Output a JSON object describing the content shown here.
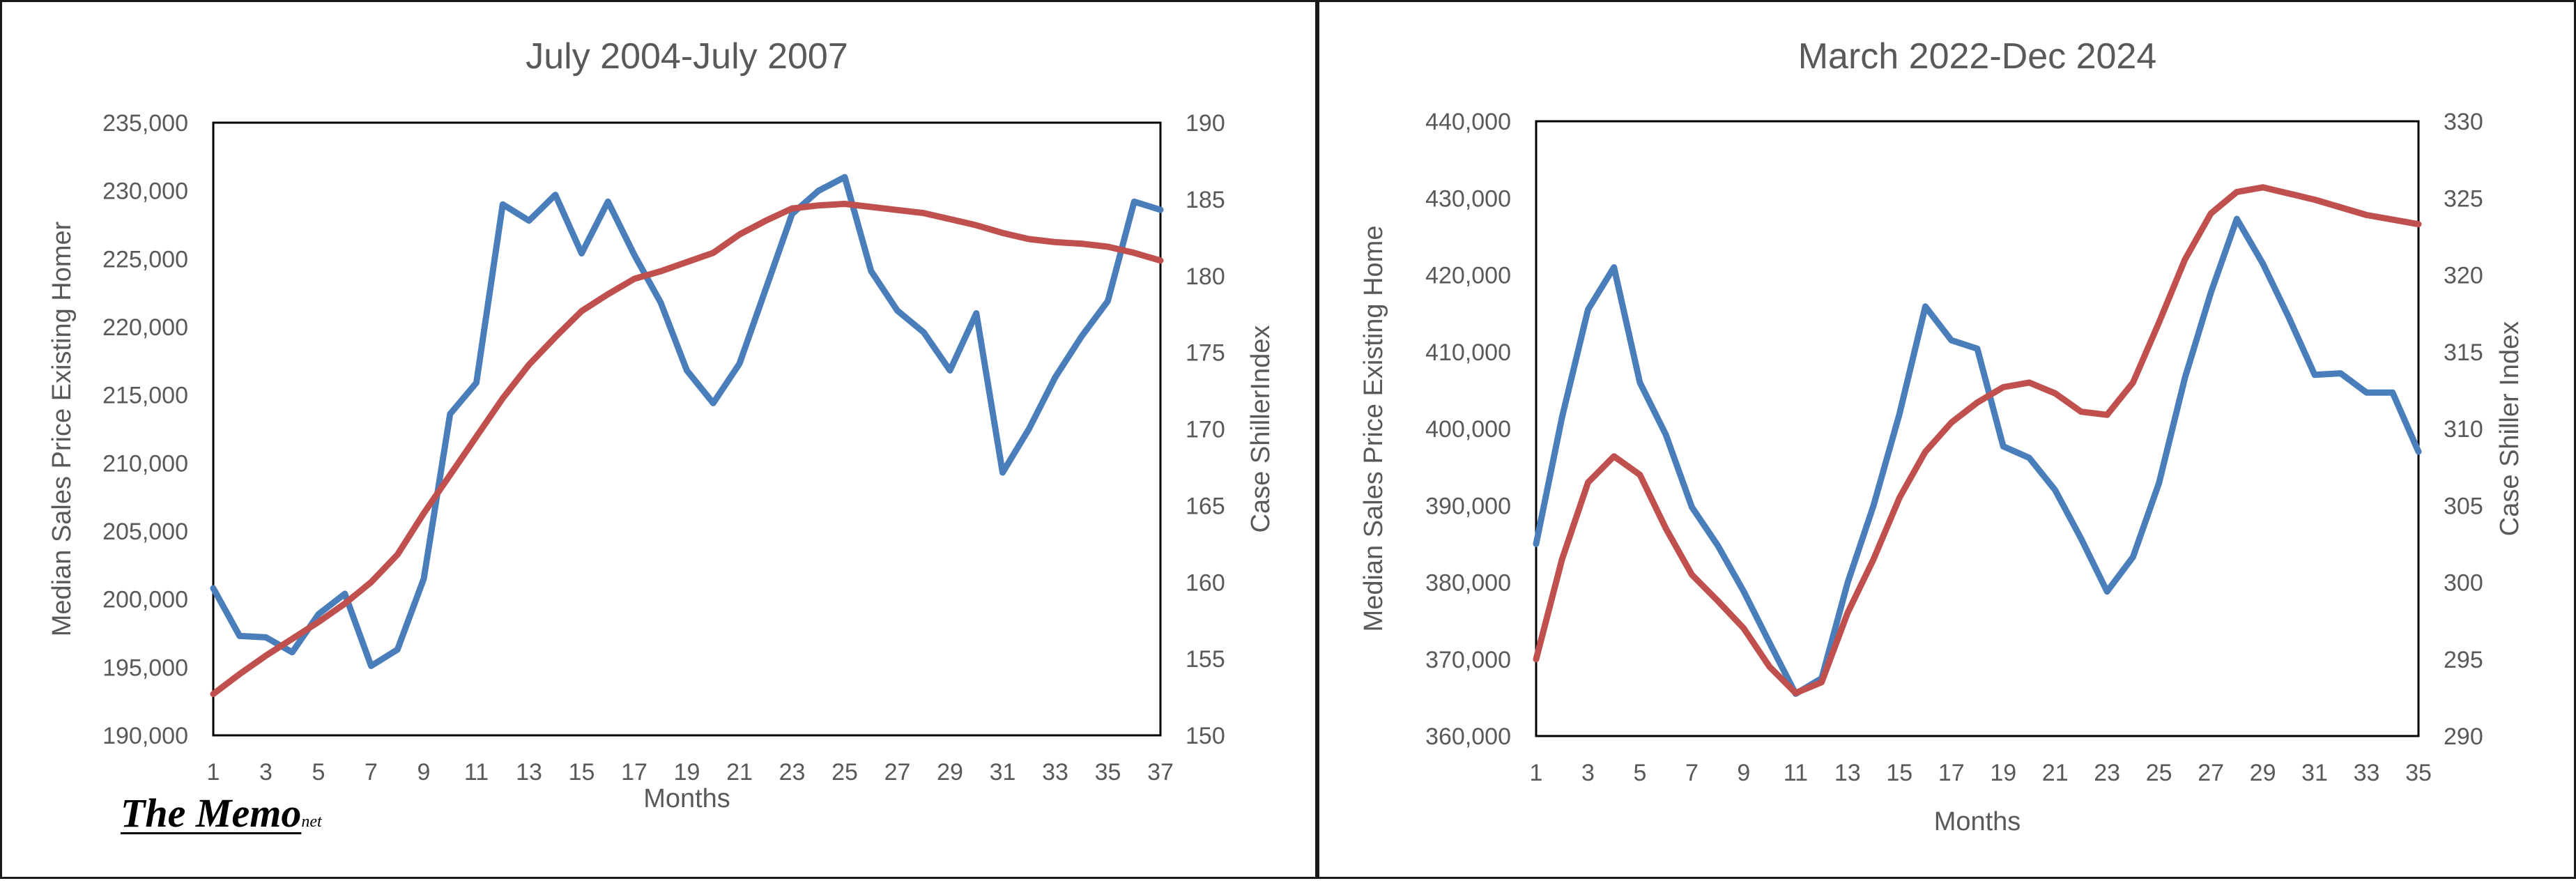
{
  "colors": {
    "series_price": "#4a7ebb",
    "series_case_shiller": "#c0504d",
    "text": "#595959",
    "frame": "#000000"
  },
  "logo": {
    "main": "The Memo",
    "sub": "net"
  },
  "chart_data": [
    {
      "type": "line",
      "title": "July 2004-July 2007",
      "xlabel": "Months",
      "ylabel_left": "Median Sales Price Existing Homer",
      "ylabel_right": "Case ShillerIndex",
      "x": [
        1,
        2,
        3,
        4,
        5,
        6,
        7,
        8,
        9,
        10,
        11,
        12,
        13,
        14,
        15,
        16,
        17,
        18,
        19,
        20,
        21,
        22,
        23,
        24,
        25,
        26,
        27,
        28,
        29,
        30,
        31,
        32,
        33,
        34,
        35,
        36,
        37
      ],
      "x_ticks": [
        "1",
        "3",
        "5",
        "7",
        "9",
        "11",
        "13",
        "15",
        "17",
        "19",
        "21",
        "23",
        "25",
        "27",
        "29",
        "31",
        "33",
        "35",
        "37"
      ],
      "ylim_left": [
        190000,
        235000
      ],
      "ylim_right": [
        150,
        190
      ],
      "y_ticks_left": [
        "190,000",
        "195,000",
        "200,000",
        "205,000",
        "210,000",
        "215,000",
        "220,000",
        "225,000",
        "230,000",
        "235,000"
      ],
      "y_ticks_right": [
        "150",
        "155",
        "160",
        "165",
        "170",
        "175",
        "180",
        "185",
        "190"
      ],
      "series": [
        {
          "name": "Median Sales Price Existing Home",
          "axis": "left",
          "color": "#4a7ebb",
          "values": [
            200800,
            197300,
            197200,
            196100,
            198900,
            200400,
            195100,
            196300,
            201500,
            213600,
            215900,
            229000,
            227800,
            229700,
            225400,
            229200,
            225300,
            221800,
            216800,
            214400,
            217300,
            222800,
            228300,
            230000,
            231000,
            224100,
            221200,
            219600,
            216800,
            221000,
            209300,
            212500,
            216300,
            219300,
            221900,
            229200,
            228600
          ]
        },
        {
          "name": "Case Shiller Index",
          "axis": "right",
          "color": "#c0504d",
          "values": [
            152.7,
            154.0,
            155.2,
            156.3,
            157.4,
            158.6,
            160.0,
            161.8,
            164.5,
            167.0,
            169.5,
            172.0,
            174.2,
            176.0,
            177.7,
            178.8,
            179.8,
            180.3,
            180.9,
            181.5,
            182.7,
            183.6,
            184.4,
            184.6,
            184.7,
            184.5,
            184.3,
            184.1,
            183.7,
            183.3,
            182.8,
            182.4,
            182.2,
            182.1,
            181.9,
            181.5,
            181.0
          ]
        }
      ]
    },
    {
      "type": "line",
      "title": "March 2022-Dec 2024",
      "xlabel": "Months",
      "ylabel_left": "Median Sales Price Existing Home",
      "ylabel_right": "Case Shiller Index",
      "x": [
        1,
        2,
        3,
        4,
        5,
        6,
        7,
        8,
        9,
        10,
        11,
        12,
        13,
        14,
        15,
        16,
        17,
        18,
        19,
        20,
        21,
        22,
        23,
        24,
        25,
        26,
        27,
        28,
        29,
        30,
        31,
        32,
        33,
        34,
        35
      ],
      "x_ticks": [
        "1",
        "3",
        "5",
        "7",
        "9",
        "11",
        "13",
        "15",
        "17",
        "19",
        "21",
        "23",
        "25",
        "27",
        "29",
        "31",
        "33",
        "35"
      ],
      "ylim_left": [
        360000,
        440000
      ],
      "ylim_right": [
        290,
        330
      ],
      "y_ticks_left": [
        "360,000",
        "370,000",
        "380,000",
        "390,000",
        "400,000",
        "410,000",
        "420,000",
        "430,000",
        "440,000"
      ],
      "y_ticks_right": [
        "290",
        "295",
        "300",
        "305",
        "310",
        "315",
        "320",
        "325",
        "330"
      ],
      "series": [
        {
          "name": "Median Sales Price Existing Home",
          "axis": "left",
          "color": "#4a7ebb",
          "values": [
            385000,
            401500,
            415500,
            421000,
            406000,
            399200,
            389800,
            384800,
            378800,
            372100,
            365500,
            367500,
            379900,
            390000,
            401900,
            415900,
            411500,
            410400,
            397700,
            396200,
            392000,
            385700,
            378800,
            383300,
            392900,
            406600,
            417700,
            427300,
            421500,
            414500,
            407000,
            407200,
            404700,
            404700,
            397000
          ]
        },
        {
          "name": "Case Shiller Index",
          "axis": "right",
          "color": "#c0504d",
          "values": [
            295.0,
            301.5,
            306.5,
            308.2,
            307.0,
            303.5,
            300.5,
            298.8,
            297.0,
            294.5,
            292.8,
            293.5,
            298.0,
            301.5,
            305.5,
            308.5,
            310.4,
            311.7,
            312.7,
            313.0,
            312.3,
            311.1,
            310.9,
            313.0,
            316.9,
            321.0,
            324.0,
            325.4,
            325.7,
            325.3,
            324.9,
            324.4,
            323.9,
            323.6,
            323.3
          ]
        }
      ]
    }
  ]
}
